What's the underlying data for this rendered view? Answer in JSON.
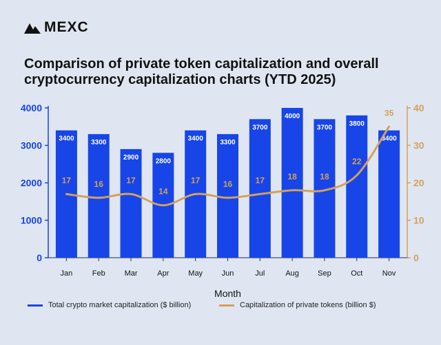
{
  "brand": {
    "name": "MEXC"
  },
  "chart_data": {
    "type": "bar",
    "title": "Comparison of private token capitalization and overall cryptocurrency capitalization charts (YTD 2025)",
    "xlabel": "Month",
    "categories": [
      "Jan",
      "Feb",
      "Mar",
      "Apr",
      "May",
      "Jun",
      "Jul",
      "Aug",
      "Sep",
      "Oct",
      "Nov"
    ],
    "series": [
      {
        "name": "Total crypto market capitalization ($ billion)",
        "type": "bar",
        "axis": "left",
        "color": "#1745e8",
        "values": [
          3400,
          3300,
          2900,
          2800,
          3400,
          3300,
          3700,
          4000,
          3700,
          3800,
          3400
        ]
      },
      {
        "name": "Capitalization of private tokens (billion $)",
        "type": "line",
        "axis": "right",
        "color": "#d4a05a",
        "values": [
          17,
          16,
          17,
          14,
          17,
          16,
          17,
          18,
          18,
          22,
          35
        ]
      }
    ],
    "y_left": {
      "ylim": [
        0,
        4000
      ],
      "ticks": [
        0,
        1000,
        2000,
        3000,
        4000
      ],
      "color": "#1745e8"
    },
    "y_right": {
      "ylim": [
        0,
        40
      ],
      "ticks": [
        0,
        10,
        20,
        30,
        40
      ],
      "color": "#d4a05a"
    },
    "grid": false,
    "legend_position": "bottom"
  }
}
